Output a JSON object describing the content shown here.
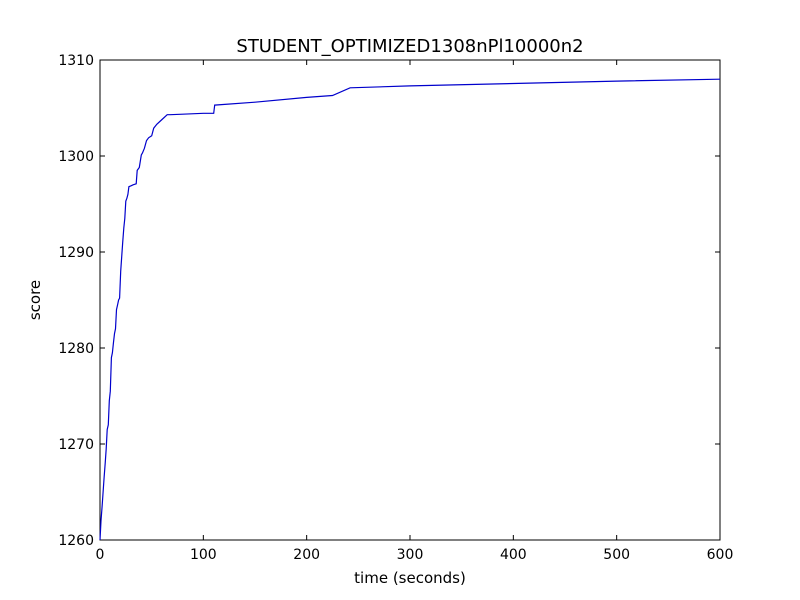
{
  "chart_data": {
    "type": "line",
    "title": "STUDENT_OPTIMIZED1308nPl10000n2",
    "xlabel": "time (seconds)",
    "ylabel": "score",
    "xlim": [
      0,
      600
    ],
    "ylim": [
      1260,
      1310
    ],
    "xticks": [
      0,
      100,
      200,
      300,
      400,
      500,
      600
    ],
    "yticks": [
      1260,
      1270,
      1280,
      1290,
      1300,
      1310
    ],
    "grid": false,
    "series": [
      {
        "color": "#0000cc",
        "x": [
          0,
          1,
          2,
          3,
          4,
          5,
          6,
          7,
          8,
          9,
          10,
          11,
          12,
          13,
          14,
          15,
          16,
          17,
          18,
          19,
          20,
          21,
          22,
          23,
          24,
          25,
          26,
          27,
          28,
          30,
          32,
          35,
          36,
          38,
          40,
          41,
          43,
          45,
          47,
          50,
          52,
          55,
          60,
          65,
          68,
          80,
          100,
          110,
          111,
          150,
          200,
          225,
          242,
          300,
          400,
          500,
          600
        ],
        "y": [
          1260,
          1262,
          1263.5,
          1265,
          1266.5,
          1268,
          1269.5,
          1271.5,
          1272,
          1274.5,
          1275.5,
          1279,
          1279.5,
          1280.5,
          1281.5,
          1282,
          1284,
          1284.5,
          1285,
          1285.2,
          1288,
          1289.5,
          1291,
          1292.5,
          1293.5,
          1295.3,
          1295.6,
          1296,
          1296.8,
          1296.9,
          1297,
          1297.1,
          1298.5,
          1298.8,
          1300.1,
          1300.3,
          1300.8,
          1301.6,
          1301.9,
          1302.1,
          1302.9,
          1303.3,
          1303.8,
          1304.3,
          1304.3,
          1304.35,
          1304.45,
          1304.45,
          1305.3,
          1305.6,
          1306.1,
          1306.3,
          1307.1,
          1307.3,
          1307.55,
          1307.8,
          1308
        ]
      }
    ]
  }
}
